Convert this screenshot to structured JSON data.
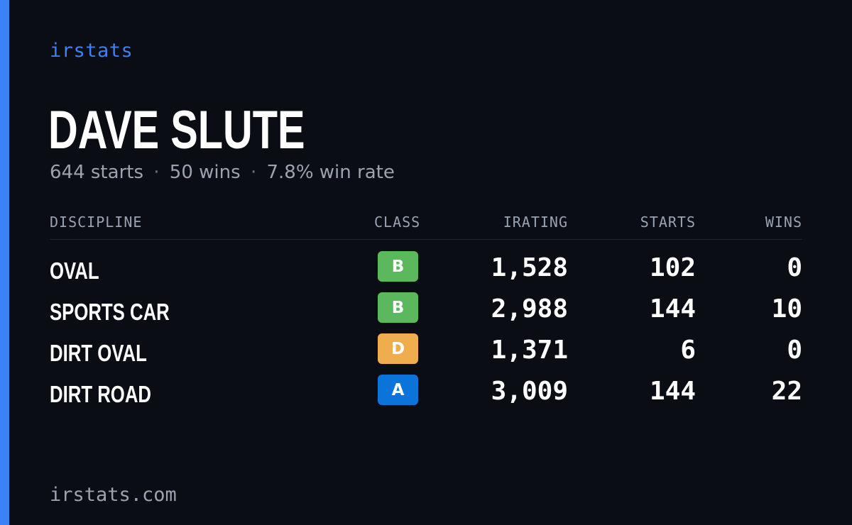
{
  "brand": "irstats",
  "driver_name": "DAVE SLUTE",
  "summary": {
    "starts": "644 starts",
    "wins": "50 wins",
    "win_rate": "7.8% win rate",
    "separator": "·"
  },
  "columns": {
    "discipline": "DISCIPLINE",
    "class": "CLASS",
    "irating": "IRATING",
    "starts": "STARTS",
    "wins": "WINS"
  },
  "rows": [
    {
      "discipline": "OVAL",
      "class": "B",
      "class_color": "#5cb85c",
      "irating": "1,528",
      "starts": "102",
      "wins": "0"
    },
    {
      "discipline": "SPORTS CAR",
      "class": "B",
      "class_color": "#5cb85c",
      "irating": "2,988",
      "starts": "144",
      "wins": "10"
    },
    {
      "discipline": "DIRT OVAL",
      "class": "D",
      "class_color": "#f0ad4e",
      "irating": "1,371",
      "starts": "6",
      "wins": "0"
    },
    {
      "discipline": "DIRT ROAD",
      "class": "A",
      "class_color": "#0a74da",
      "irating": "3,009",
      "starts": "144",
      "wins": "22"
    }
  ],
  "footer": "irstats.com",
  "colors": {
    "accent": "#3b82f6",
    "background": "#0a0d14"
  }
}
